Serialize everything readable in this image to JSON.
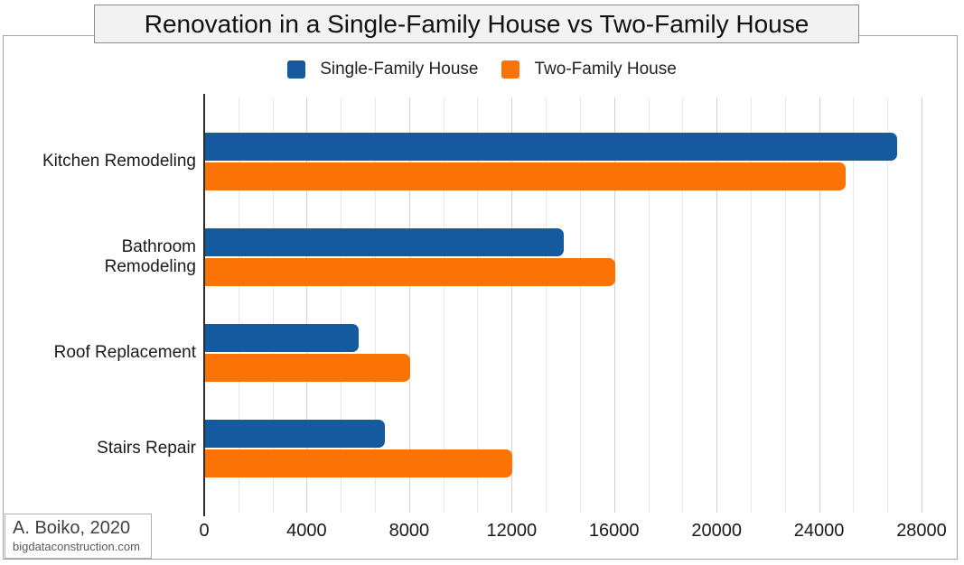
{
  "title": "Renovation in a Single-Family House vs Two-Family House",
  "legend": {
    "items": [
      {
        "label": "Single-Family House",
        "color": "#15599E"
      },
      {
        "label": "Two-Family House",
        "color": "#FB7305"
      }
    ]
  },
  "chart_data": {
    "type": "bar",
    "orientation": "horizontal",
    "title": "Renovation in a Single-Family House vs Two-Family House",
    "categories": [
      "Kitchen Remodeling",
      "Bathroom\nRemodeling",
      "Roof Replacement",
      "Stairs Repair"
    ],
    "series": [
      {
        "name": "Single-Family House",
        "color": "#15599E",
        "values": [
          27000,
          14000,
          6000,
          7000
        ]
      },
      {
        "name": "Two-Family House",
        "color": "#FB7305",
        "values": [
          25000,
          16000,
          8000,
          12000
        ]
      }
    ],
    "xlim": [
      0,
      28000
    ],
    "x_ticks": [
      0,
      4000,
      8000,
      12000,
      16000,
      20000,
      24000,
      28000
    ],
    "minor_gridline_divisions": 3,
    "grid": true,
    "legend_position": "top",
    "gridline_minor_color": "#e7e7e7",
    "gridline_major_color": "#d2d2d2",
    "axis_color": "#2b2b2b"
  },
  "attribution": {
    "author": "A. Boiko, 2020",
    "website": "bigdataconstruction.com"
  }
}
